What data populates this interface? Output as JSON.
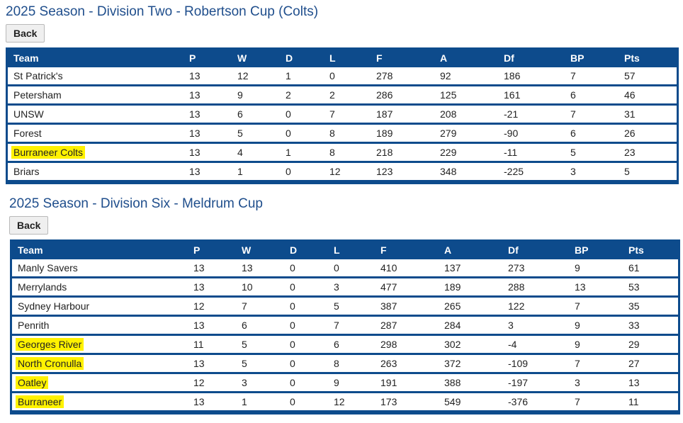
{
  "tables": [
    {
      "title": "2025 Season - Division Two - Robertson Cup (Colts)",
      "back_label": "Back",
      "headers": [
        "Team",
        "P",
        "W",
        "D",
        "L",
        "F",
        "A",
        "Df",
        "BP",
        "Pts"
      ],
      "rows": [
        {
          "team": "St Patrick's",
          "p": "13",
          "w": "12",
          "d": "1",
          "l": "0",
          "f": "278",
          "a": "92",
          "df": "186",
          "bp": "7",
          "pts": "57",
          "highlighted": false
        },
        {
          "team": "Petersham",
          "p": "13",
          "w": "9",
          "d": "2",
          "l": "2",
          "f": "286",
          "a": "125",
          "df": "161",
          "bp": "6",
          "pts": "46",
          "highlighted": false
        },
        {
          "team": "UNSW",
          "p": "13",
          "w": "6",
          "d": "0",
          "l": "7",
          "f": "187",
          "a": "208",
          "df": "-21",
          "bp": "7",
          "pts": "31",
          "highlighted": false
        },
        {
          "team": "Forest",
          "p": "13",
          "w": "5",
          "d": "0",
          "l": "8",
          "f": "189",
          "a": "279",
          "df": "-90",
          "bp": "6",
          "pts": "26",
          "highlighted": false
        },
        {
          "team": "Burraneer Colts",
          "p": "13",
          "w": "4",
          "d": "1",
          "l": "8",
          "f": "218",
          "a": "229",
          "df": "-11",
          "bp": "5",
          "pts": "23",
          "highlighted": true
        },
        {
          "team": "Briars",
          "p": "13",
          "w": "1",
          "d": "0",
          "l": "12",
          "f": "123",
          "a": "348",
          "df": "-225",
          "bp": "3",
          "pts": "5",
          "highlighted": false
        }
      ]
    },
    {
      "title": "2025 Season - Division Six - Meldrum Cup",
      "back_label": "Back",
      "headers": [
        "Team",
        "P",
        "W",
        "D",
        "L",
        "F",
        "A",
        "Df",
        "BP",
        "Pts"
      ],
      "rows": [
        {
          "team": "Manly Savers",
          "p": "13",
          "w": "13",
          "d": "0",
          "l": "0",
          "f": "410",
          "a": "137",
          "df": "273",
          "bp": "9",
          "pts": "61",
          "highlighted": false
        },
        {
          "team": "Merrylands",
          "p": "13",
          "w": "10",
          "d": "0",
          "l": "3",
          "f": "477",
          "a": "189",
          "df": "288",
          "bp": "13",
          "pts": "53",
          "highlighted": false
        },
        {
          "team": "Sydney Harbour",
          "p": "12",
          "w": "7",
          "d": "0",
          "l": "5",
          "f": "387",
          "a": "265",
          "df": "122",
          "bp": "7",
          "pts": "35",
          "highlighted": false
        },
        {
          "team": "Penrith",
          "p": "13",
          "w": "6",
          "d": "0",
          "l": "7",
          "f": "287",
          "a": "284",
          "df": "3",
          "bp": "9",
          "pts": "33",
          "highlighted": false
        },
        {
          "team": "Georges River",
          "p": "11",
          "w": "5",
          "d": "0",
          "l": "6",
          "f": "298",
          "a": "302",
          "df": "-4",
          "bp": "9",
          "pts": "29",
          "highlighted": true
        },
        {
          "team": "North Cronulla",
          "p": "13",
          "w": "5",
          "d": "0",
          "l": "8",
          "f": "263",
          "a": "372",
          "df": "-109",
          "bp": "7",
          "pts": "27",
          "highlighted": true
        },
        {
          "team": "Oatley",
          "p": "12",
          "w": "3",
          "d": "0",
          "l": "9",
          "f": "191",
          "a": "388",
          "df": "-197",
          "bp": "3",
          "pts": "13",
          "highlighted": true
        },
        {
          "team": "Burraneer",
          "p": "13",
          "w": "1",
          "d": "0",
          "l": "12",
          "f": "173",
          "a": "549",
          "df": "-376",
          "bp": "7",
          "pts": "11",
          "highlighted": true
        }
      ]
    }
  ],
  "colors": {
    "header_blue": "#0d4b8c",
    "title_blue": "#1f4e8c",
    "highlight": "#fff200"
  }
}
